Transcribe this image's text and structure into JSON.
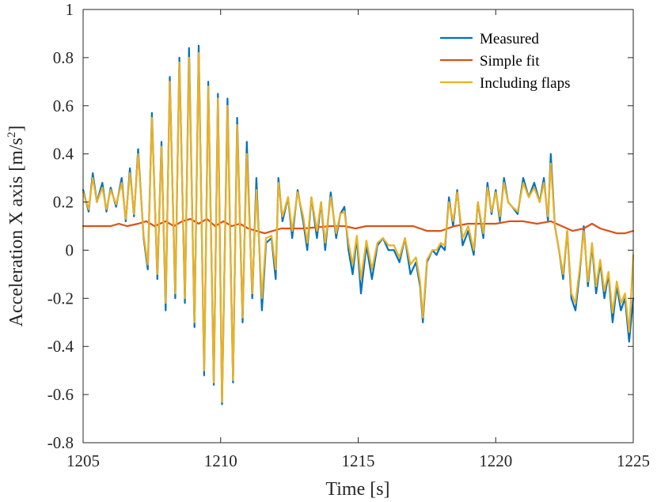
{
  "chart_data": {
    "type": "line",
    "title": "",
    "xlabel": "Time [s]",
    "ylabel": "Acceleration X axis [m/s",
    "ylabel_superscript": "2",
    "ylabel_suffix": "]",
    "xlim": [
      1205,
      1225
    ],
    "ylim": [
      -0.8,
      1.0
    ],
    "xticks": [
      1205,
      1210,
      1215,
      1220,
      1225
    ],
    "xtick_labels": [
      "1205",
      "1210",
      "1215",
      "1220",
      "1225"
    ],
    "yticks": [
      -0.8,
      -0.6,
      -0.4,
      -0.2,
      0,
      0.2,
      0.4,
      0.6,
      0.8,
      1.0
    ],
    "ytick_labels": [
      "-0.8",
      "-0.6",
      "-0.4",
      "-0.2",
      "0",
      "0.2",
      "0.4",
      "0.6",
      "0.8",
      "1"
    ],
    "grid": false,
    "legend_position": "top-right",
    "series": [
      {
        "name": "Measured",
        "color": "#0072BD",
        "points": [
          [
            1205.0,
            0.25
          ],
          [
            1205.2,
            0.16
          ],
          [
            1205.35,
            0.32
          ],
          [
            1205.5,
            0.2
          ],
          [
            1205.7,
            0.28
          ],
          [
            1205.85,
            0.16
          ],
          [
            1206.0,
            0.26
          ],
          [
            1206.2,
            0.18
          ],
          [
            1206.4,
            0.3
          ],
          [
            1206.55,
            0.12
          ],
          [
            1206.7,
            0.34
          ],
          [
            1206.85,
            0.14
          ],
          [
            1207.0,
            0.42
          ],
          [
            1207.2,
            0.05
          ],
          [
            1207.35,
            -0.08
          ],
          [
            1207.5,
            0.57
          ],
          [
            1207.7,
            -0.12
          ],
          [
            1207.85,
            0.45
          ],
          [
            1208.0,
            -0.25
          ],
          [
            1208.15,
            0.72
          ],
          [
            1208.35,
            -0.2
          ],
          [
            1208.5,
            0.8
          ],
          [
            1208.7,
            -0.22
          ],
          [
            1208.85,
            0.84
          ],
          [
            1209.05,
            -0.32
          ],
          [
            1209.2,
            0.85
          ],
          [
            1209.4,
            -0.52
          ],
          [
            1209.55,
            0.7
          ],
          [
            1209.75,
            -0.56
          ],
          [
            1209.9,
            0.65
          ],
          [
            1210.05,
            -0.64
          ],
          [
            1210.25,
            0.63
          ],
          [
            1210.45,
            -0.55
          ],
          [
            1210.6,
            0.55
          ],
          [
            1210.8,
            -0.3
          ],
          [
            1210.95,
            0.45
          ],
          [
            1211.15,
            -0.2
          ],
          [
            1211.3,
            0.3
          ],
          [
            1211.5,
            -0.25
          ],
          [
            1211.65,
            0.03
          ],
          [
            1211.85,
            0.05
          ],
          [
            1212.0,
            -0.12
          ],
          [
            1212.1,
            0.3
          ],
          [
            1212.25,
            0.12
          ],
          [
            1212.45,
            0.22
          ],
          [
            1212.6,
            0.05
          ],
          [
            1212.8,
            0.25
          ],
          [
            1213.0,
            0.12
          ],
          [
            1213.15,
            0.0
          ],
          [
            1213.3,
            0.22
          ],
          [
            1213.5,
            0.05
          ],
          [
            1213.65,
            0.2
          ],
          [
            1213.8,
            0.0
          ],
          [
            1214.0,
            0.24
          ],
          [
            1214.2,
            0.05
          ],
          [
            1214.35,
            0.15
          ],
          [
            1214.5,
            0.18
          ],
          [
            1214.65,
            0.0
          ],
          [
            1214.8,
            -0.1
          ],
          [
            1214.95,
            0.05
          ],
          [
            1215.1,
            -0.18
          ],
          [
            1215.3,
            0.02
          ],
          [
            1215.5,
            -0.12
          ],
          [
            1215.7,
            0.02
          ],
          [
            1215.9,
            0.05
          ],
          [
            1216.1,
            0.0
          ],
          [
            1216.3,
            0.0
          ],
          [
            1216.5,
            -0.05
          ],
          [
            1216.7,
            0.05
          ],
          [
            1216.9,
            -0.1
          ],
          [
            1217.1,
            -0.05
          ],
          [
            1217.25,
            -0.15
          ],
          [
            1217.35,
            -0.3
          ],
          [
            1217.5,
            -0.05
          ],
          [
            1217.7,
            0.0
          ],
          [
            1217.85,
            -0.02
          ],
          [
            1218.0,
            0.02
          ],
          [
            1218.15,
            0.0
          ],
          [
            1218.3,
            0.22
          ],
          [
            1218.45,
            0.1
          ],
          [
            1218.6,
            0.25
          ],
          [
            1218.8,
            0.02
          ],
          [
            1219.0,
            0.08
          ],
          [
            1219.2,
            -0.02
          ],
          [
            1219.35,
            0.2
          ],
          [
            1219.55,
            0.05
          ],
          [
            1219.7,
            0.28
          ],
          [
            1219.85,
            0.15
          ],
          [
            1220.0,
            0.25
          ],
          [
            1220.15,
            0.12
          ],
          [
            1220.3,
            0.3
          ],
          [
            1220.45,
            0.2
          ],
          [
            1220.6,
            0.18
          ],
          [
            1220.8,
            0.15
          ],
          [
            1221.0,
            0.3
          ],
          [
            1221.2,
            0.22
          ],
          [
            1221.4,
            0.28
          ],
          [
            1221.6,
            0.2
          ],
          [
            1221.75,
            0.3
          ],
          [
            1221.9,
            0.12
          ],
          [
            1222.0,
            0.4
          ],
          [
            1222.15,
            0.1
          ],
          [
            1222.3,
            0.0
          ],
          [
            1222.45,
            -0.12
          ],
          [
            1222.6,
            0.08
          ],
          [
            1222.75,
            -0.2
          ],
          [
            1222.9,
            -0.25
          ],
          [
            1223.05,
            -0.1
          ],
          [
            1223.2,
            0.1
          ],
          [
            1223.35,
            -0.15
          ],
          [
            1223.5,
            0.02
          ],
          [
            1223.65,
            -0.18
          ],
          [
            1223.8,
            -0.05
          ],
          [
            1223.95,
            -0.2
          ],
          [
            1224.1,
            -0.1
          ],
          [
            1224.25,
            -0.3
          ],
          [
            1224.4,
            -0.15
          ],
          [
            1224.55,
            -0.25
          ],
          [
            1224.7,
            -0.2
          ],
          [
            1224.85,
            -0.38
          ],
          [
            1225.0,
            -0.2
          ]
        ]
      },
      {
        "name": "Simple fit",
        "color": "#D95319",
        "points": [
          [
            1205.0,
            0.1
          ],
          [
            1205.5,
            0.1
          ],
          [
            1206.0,
            0.1
          ],
          [
            1206.3,
            0.11
          ],
          [
            1206.6,
            0.1
          ],
          [
            1207.0,
            0.11
          ],
          [
            1207.3,
            0.12
          ],
          [
            1207.6,
            0.1
          ],
          [
            1208.0,
            0.12
          ],
          [
            1208.3,
            0.1
          ],
          [
            1208.6,
            0.12
          ],
          [
            1208.9,
            0.13
          ],
          [
            1209.2,
            0.11
          ],
          [
            1209.5,
            0.13
          ],
          [
            1209.8,
            0.1
          ],
          [
            1210.1,
            0.12
          ],
          [
            1210.4,
            0.1
          ],
          [
            1210.7,
            0.11
          ],
          [
            1211.0,
            0.09
          ],
          [
            1211.3,
            0.08
          ],
          [
            1211.6,
            0.07
          ],
          [
            1211.9,
            0.08
          ],
          [
            1212.2,
            0.09
          ],
          [
            1212.6,
            0.09
          ],
          [
            1213.0,
            0.09
          ],
          [
            1213.5,
            0.095
          ],
          [
            1214.0,
            0.1
          ],
          [
            1214.5,
            0.1
          ],
          [
            1214.9,
            0.09
          ],
          [
            1215.3,
            0.1
          ],
          [
            1215.7,
            0.1
          ],
          [
            1216.1,
            0.1
          ],
          [
            1216.5,
            0.1
          ],
          [
            1217.0,
            0.1
          ],
          [
            1217.5,
            0.08
          ],
          [
            1218.0,
            0.08
          ],
          [
            1218.5,
            0.1
          ],
          [
            1219.0,
            0.11
          ],
          [
            1219.5,
            0.11
          ],
          [
            1220.0,
            0.11
          ],
          [
            1220.5,
            0.12
          ],
          [
            1221.0,
            0.12
          ],
          [
            1221.5,
            0.11
          ],
          [
            1222.0,
            0.12
          ],
          [
            1222.4,
            0.1
          ],
          [
            1222.8,
            0.08
          ],
          [
            1223.2,
            0.09
          ],
          [
            1223.5,
            0.11
          ],
          [
            1223.8,
            0.09
          ],
          [
            1224.1,
            0.08
          ],
          [
            1224.4,
            0.07
          ],
          [
            1224.7,
            0.07
          ],
          [
            1225.0,
            0.08
          ]
        ]
      },
      {
        "name": "Including flaps",
        "color": "#EDB120",
        "points": [
          [
            1205.0,
            0.24
          ],
          [
            1205.2,
            0.17
          ],
          [
            1205.35,
            0.3
          ],
          [
            1205.5,
            0.2
          ],
          [
            1205.7,
            0.26
          ],
          [
            1205.85,
            0.17
          ],
          [
            1206.0,
            0.25
          ],
          [
            1206.2,
            0.19
          ],
          [
            1206.4,
            0.28
          ],
          [
            1206.55,
            0.13
          ],
          [
            1206.7,
            0.32
          ],
          [
            1206.85,
            0.15
          ],
          [
            1207.0,
            0.4
          ],
          [
            1207.2,
            0.06
          ],
          [
            1207.35,
            -0.06
          ],
          [
            1207.5,
            0.55
          ],
          [
            1207.7,
            -0.1
          ],
          [
            1207.85,
            0.43
          ],
          [
            1208.0,
            -0.22
          ],
          [
            1208.15,
            0.7
          ],
          [
            1208.35,
            -0.18
          ],
          [
            1208.5,
            0.78
          ],
          [
            1208.7,
            -0.2
          ],
          [
            1208.85,
            0.8
          ],
          [
            1209.05,
            -0.3
          ],
          [
            1209.2,
            0.82
          ],
          [
            1209.4,
            -0.5
          ],
          [
            1209.55,
            0.68
          ],
          [
            1209.75,
            -0.55
          ],
          [
            1209.9,
            0.63
          ],
          [
            1210.05,
            -0.63
          ],
          [
            1210.25,
            0.6
          ],
          [
            1210.45,
            -0.54
          ],
          [
            1210.6,
            0.52
          ],
          [
            1210.8,
            -0.28
          ],
          [
            1210.95,
            0.4
          ],
          [
            1211.15,
            -0.18
          ],
          [
            1211.3,
            0.25
          ],
          [
            1211.5,
            -0.2
          ],
          [
            1211.65,
            0.05
          ],
          [
            1211.85,
            0.06
          ],
          [
            1212.0,
            -0.08
          ],
          [
            1212.1,
            0.28
          ],
          [
            1212.25,
            0.14
          ],
          [
            1212.45,
            0.22
          ],
          [
            1212.6,
            0.08
          ],
          [
            1212.8,
            0.24
          ],
          [
            1213.0,
            0.14
          ],
          [
            1213.15,
            0.03
          ],
          [
            1213.3,
            0.22
          ],
          [
            1213.5,
            0.08
          ],
          [
            1213.65,
            0.2
          ],
          [
            1213.8,
            0.03
          ],
          [
            1214.0,
            0.22
          ],
          [
            1214.2,
            0.07
          ],
          [
            1214.35,
            0.15
          ],
          [
            1214.5,
            0.16
          ],
          [
            1214.65,
            0.03
          ],
          [
            1214.8,
            -0.06
          ],
          [
            1214.95,
            0.06
          ],
          [
            1215.1,
            -0.12
          ],
          [
            1215.3,
            0.04
          ],
          [
            1215.5,
            -0.08
          ],
          [
            1215.7,
            0.03
          ],
          [
            1215.9,
            0.05
          ],
          [
            1216.1,
            0.02
          ],
          [
            1216.3,
            0.02
          ],
          [
            1216.5,
            -0.03
          ],
          [
            1216.7,
            0.05
          ],
          [
            1216.9,
            -0.06
          ],
          [
            1217.1,
            -0.03
          ],
          [
            1217.25,
            -0.13
          ],
          [
            1217.35,
            -0.28
          ],
          [
            1217.5,
            -0.04
          ],
          [
            1217.7,
            0.0
          ],
          [
            1217.85,
            0.0
          ],
          [
            1218.0,
            0.03
          ],
          [
            1218.15,
            0.02
          ],
          [
            1218.3,
            0.2
          ],
          [
            1218.45,
            0.12
          ],
          [
            1218.6,
            0.24
          ],
          [
            1218.8,
            0.05
          ],
          [
            1219.0,
            0.1
          ],
          [
            1219.2,
            0.0
          ],
          [
            1219.35,
            0.2
          ],
          [
            1219.55,
            0.07
          ],
          [
            1219.7,
            0.26
          ],
          [
            1219.85,
            0.16
          ],
          [
            1220.0,
            0.24
          ],
          [
            1220.15,
            0.14
          ],
          [
            1220.3,
            0.28
          ],
          [
            1220.45,
            0.2
          ],
          [
            1220.6,
            0.18
          ],
          [
            1220.8,
            0.16
          ],
          [
            1221.0,
            0.28
          ],
          [
            1221.2,
            0.22
          ],
          [
            1221.4,
            0.26
          ],
          [
            1221.6,
            0.2
          ],
          [
            1221.75,
            0.28
          ],
          [
            1221.9,
            0.14
          ],
          [
            1222.0,
            0.36
          ],
          [
            1222.15,
            0.1
          ],
          [
            1222.3,
            0.0
          ],
          [
            1222.45,
            -0.1
          ],
          [
            1222.6,
            0.08
          ],
          [
            1222.75,
            -0.18
          ],
          [
            1222.9,
            -0.22
          ],
          [
            1223.05,
            -0.08
          ],
          [
            1223.2,
            0.08
          ],
          [
            1223.35,
            -0.13
          ],
          [
            1223.5,
            0.03
          ],
          [
            1223.65,
            -0.15
          ],
          [
            1223.8,
            -0.04
          ],
          [
            1223.95,
            -0.17
          ],
          [
            1224.1,
            -0.09
          ],
          [
            1224.25,
            -0.26
          ],
          [
            1224.4,
            -0.13
          ],
          [
            1224.55,
            -0.22
          ],
          [
            1224.7,
            -0.18
          ],
          [
            1224.85,
            -0.34
          ],
          [
            1225.0,
            -0.02
          ]
        ]
      }
    ]
  }
}
